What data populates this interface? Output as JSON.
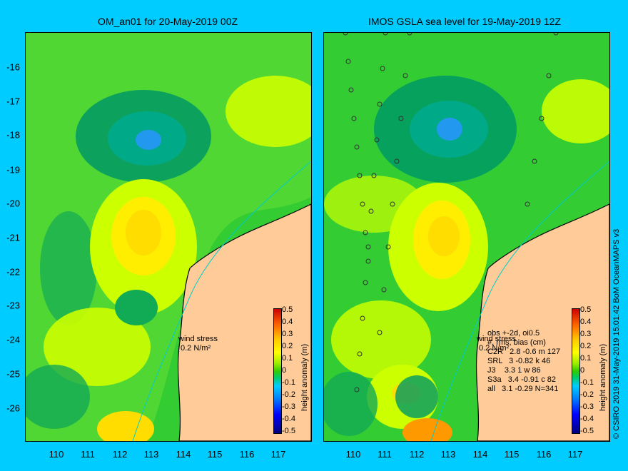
{
  "panels": {
    "left": {
      "title": "OM_an01 for 20-May-2019 00Z"
    },
    "right": {
      "title": "IMOS GSLA sea level  for 19-May-2019 12Z"
    }
  },
  "axes": {
    "latitude_ticks": [
      "-16",
      "-17",
      "-18",
      "-19",
      "-20",
      "-21",
      "-22",
      "-23",
      "-24",
      "-25",
      "-26"
    ],
    "longitude_ticks": [
      "110",
      "111",
      "112",
      "113",
      "114",
      "115",
      "116",
      "117"
    ],
    "lat_range": [
      -15.0,
      -27.0
    ],
    "lon_range": [
      109.0,
      118.0
    ]
  },
  "colorbar": {
    "label": "height anomaly (m)",
    "ticks": [
      "0.5",
      "0.4",
      "0.3",
      "0.2",
      "0.1",
      "0",
      "-0.1",
      "-0.2",
      "-0.3",
      "-0.4",
      "-0.5"
    ],
    "colors": {
      "neg_extreme": "#000080",
      "neg": "#0080ff",
      "zero": "#33cc00",
      "pos": "#ffff00",
      "pos_extreme": "#cc0000"
    }
  },
  "wind": {
    "label_line1": "wind stress",
    "label_line2": "0.2 N/m²"
  },
  "stats": {
    "line1": "obs +-2d, oi0.5",
    "line2": "#, rms, bias (cm)",
    "line3": "C2R   2.8 -0.6 m 127",
    "line4": "SRL   3 -0.82 k 46",
    "line5": "J3    3.3 1 w 86",
    "line6": "S3a   3.4 -0.91 c 82",
    "line7": "all   3.1 -0.29 N=341"
  },
  "credit": "© CSIRO 2019   31-May-2019 15:01:42 BoM OceanMAPS v3",
  "land_color": "#ffcc99",
  "ocean_base_color": "#33cc33"
}
